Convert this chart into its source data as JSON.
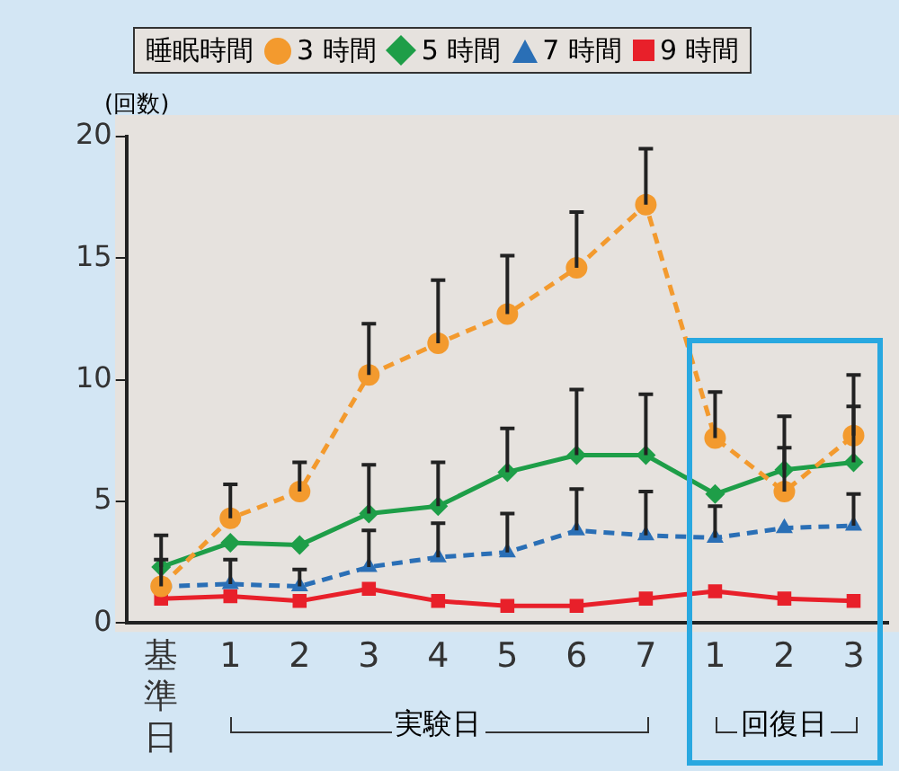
{
  "chart_data": {
    "type": "line",
    "ylabel": "(回数)",
    "legend_title": "睡眠時間",
    "legend": "top",
    "categories": [
      "基準日",
      "1",
      "2",
      "3",
      "4",
      "5",
      "6",
      "7",
      "1",
      "2",
      "3"
    ],
    "ylim": [
      0,
      20
    ],
    "yticks": [
      0,
      5,
      10,
      15,
      20
    ],
    "grid": false,
    "annotations": [
      "実験日",
      "回復日"
    ],
    "series": [
      {
        "name": "3 時間",
        "color": "#f39a2e",
        "marker": "circle",
        "line_style": "dashed",
        "values": [
          1.5,
          4.3,
          5.4,
          10.2,
          11.5,
          12.7,
          14.6,
          17.2,
          7.6,
          5.4,
          7.7
        ],
        "errors": [
          [
            1.5,
            2.6
          ],
          [
            4.3,
            5.7
          ],
          [
            5.4,
            6.6
          ],
          [
            10.2,
            12.3
          ],
          [
            11.5,
            14.1
          ],
          [
            12.7,
            15.1
          ],
          [
            14.6,
            16.9
          ],
          [
            17.2,
            19.5
          ],
          [
            7.6,
            9.5
          ],
          [
            5.4,
            7.2
          ],
          [
            7.7,
            10.2
          ]
        ]
      },
      {
        "name": "5 時間",
        "color": "#1e9e48",
        "marker": "diamond",
        "line_style": "solid",
        "values": [
          2.3,
          3.3,
          3.2,
          4.5,
          4.8,
          6.2,
          6.9,
          6.9,
          5.3,
          6.3,
          6.6
        ],
        "errors": [
          [
            2.3,
            3.6
          ],
          null,
          null,
          [
            4.5,
            6.5
          ],
          [
            4.8,
            6.6
          ],
          [
            6.2,
            8.0
          ],
          [
            6.9,
            9.6
          ],
          [
            6.9,
            9.4
          ],
          null,
          [
            6.3,
            8.5
          ],
          [
            6.6,
            8.9
          ]
        ]
      },
      {
        "name": "7 時間",
        "color": "#2a6fb6",
        "marker": "triangle",
        "line_style": "dashed",
        "values": [
          1.5,
          1.6,
          1.5,
          2.3,
          2.7,
          2.9,
          3.8,
          3.6,
          3.5,
          3.9,
          4.0
        ],
        "errors": [
          null,
          [
            1.6,
            2.6
          ],
          [
            1.5,
            2.2
          ],
          [
            2.3,
            3.8
          ],
          [
            2.7,
            4.1
          ],
          [
            2.9,
            4.5
          ],
          [
            3.8,
            5.5
          ],
          [
            3.6,
            5.4
          ],
          [
            3.5,
            4.8
          ],
          null,
          [
            4.0,
            5.3
          ]
        ]
      },
      {
        "name": "9 時間",
        "color": "#e8202a",
        "marker": "square",
        "line_style": "solid",
        "values": [
          1.0,
          1.1,
          0.9,
          1.4,
          0.9,
          0.7,
          0.7,
          1.0,
          1.3,
          1.0,
          0.9
        ]
      }
    ]
  }
}
